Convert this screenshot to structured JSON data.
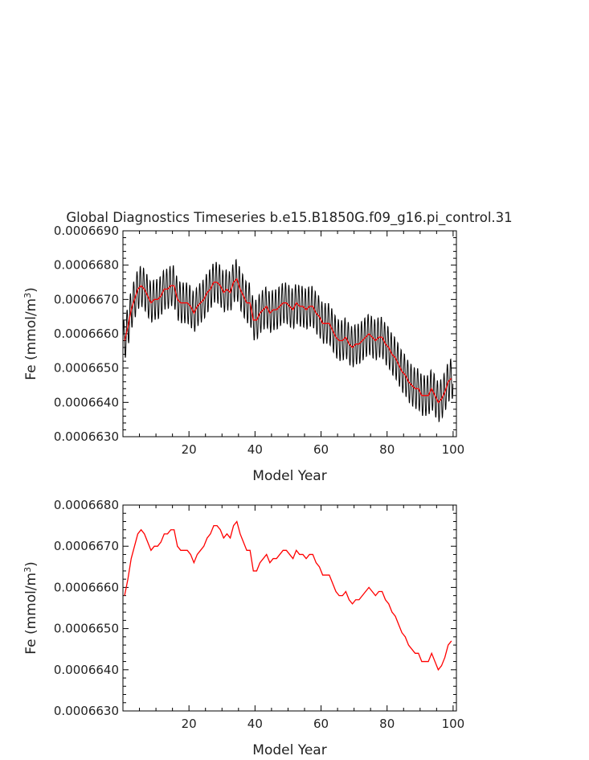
{
  "title": "Global Diagnostics Timeseries b.e15.B1850G.f09_g16.pi_control.31",
  "colors": {
    "monthly": "#000000",
    "annual": "#ff0000",
    "axes": "#000000"
  },
  "chart_data": [
    {
      "type": "line",
      "panel": "top",
      "xlabel": "Model Year",
      "ylabel": "Fe (mmol/m³)",
      "ylabel_base": "Fe (mmol/m",
      "ylabel_sup": "3",
      "ylabel_close": ")",
      "xlim": [
        0,
        101
      ],
      "ylim": [
        0.000663,
        0.000669
      ],
      "xticks": [
        20,
        40,
        60,
        80,
        100
      ],
      "xtick_labels": [
        "20",
        "40",
        "60",
        "80",
        "100"
      ],
      "yticks": [
        0.000663,
        0.000664,
        0.000665,
        0.000666,
        0.000667,
        0.000668,
        0.000669
      ],
      "ytick_labels": [
        "0.0006630",
        "0.0006640",
        "0.0006650",
        "0.0006660",
        "0.0006670",
        "0.0006680",
        "0.0006690"
      ],
      "series": [
        {
          "role": "monthly",
          "color": "#000000",
          "seasonal_amplitude": 6e-07
        },
        {
          "role": "annual",
          "color": "#ff0000"
        }
      ]
    },
    {
      "type": "line",
      "panel": "bottom",
      "xlabel": "Model Year",
      "ylabel": "Fe (mmol/m³)",
      "ylabel_base": "Fe (mmol/m",
      "ylabel_sup": "3",
      "ylabel_close": ")",
      "xlim": [
        0,
        101
      ],
      "ylim": [
        0.000663,
        0.000668
      ],
      "xticks": [
        20,
        40,
        60,
        80,
        100
      ],
      "xtick_labels": [
        "20",
        "40",
        "60",
        "80",
        "100"
      ],
      "yticks": [
        0.000663,
        0.000664,
        0.000665,
        0.000666,
        0.000667,
        0.000668
      ],
      "ytick_labels": [
        "0.0006630",
        "0.0006640",
        "0.0006650",
        "0.0006660",
        "0.0006670",
        "0.0006680"
      ],
      "series": [
        {
          "role": "annual",
          "color": "#ff0000"
        }
      ]
    }
  ],
  "annual_mean": {
    "x": [
      1,
      2,
      3,
      4,
      5,
      6,
      7,
      8,
      9,
      10,
      11,
      12,
      13,
      14,
      15,
      16,
      17,
      18,
      19,
      20,
      21,
      22,
      23,
      24,
      25,
      26,
      27,
      28,
      29,
      30,
      31,
      32,
      33,
      34,
      35,
      36,
      37,
      38,
      39,
      40,
      41,
      42,
      43,
      44,
      45,
      46,
      47,
      48,
      49,
      50,
      51,
      52,
      53,
      54,
      55,
      56,
      57,
      58,
      59,
      60,
      61,
      62,
      63,
      64,
      65,
      66,
      67,
      68,
      69,
      70,
      71,
      72,
      73,
      74,
      75,
      76,
      77,
      78,
      79,
      80,
      81,
      82,
      83,
      84,
      85,
      86,
      87,
      88,
      89,
      90,
      91,
      92,
      93,
      94,
      95,
      96,
      97,
      98,
      99,
      100
    ],
    "y": [
      0.0006658,
      0.0006662,
      0.0006667,
      0.000667,
      0.0006673,
      0.0006674,
      0.0006673,
      0.0006671,
      0.0006669,
      0.000667,
      0.000667,
      0.0006671,
      0.0006673,
      0.0006673,
      0.0006674,
      0.0006674,
      0.000667,
      0.0006669,
      0.0006669,
      0.0006669,
      0.0006668,
      0.0006666,
      0.0006668,
      0.0006669,
      0.000667,
      0.0006672,
      0.0006673,
      0.0006675,
      0.0006675,
      0.0006674,
      0.0006672,
      0.0006673,
      0.0006672,
      0.0006675,
      0.0006676,
      0.0006673,
      0.0006671,
      0.0006669,
      0.0006669,
      0.0006664,
      0.0006664,
      0.0006666,
      0.0006667,
      0.0006668,
      0.0006666,
      0.0006667,
      0.0006667,
      0.0006668,
      0.0006669,
      0.0006669,
      0.0006668,
      0.0006667,
      0.0006669,
      0.0006668,
      0.0006668,
      0.0006667,
      0.0006668,
      0.0006668,
      0.0006666,
      0.0006665,
      0.0006663,
      0.0006663,
      0.0006663,
      0.0006661,
      0.0006659,
      0.0006658,
      0.0006658,
      0.0006659,
      0.0006657,
      0.0006656,
      0.0006657,
      0.0006657,
      0.0006658,
      0.0006659,
      0.000666,
      0.0006659,
      0.0006658,
      0.0006659,
      0.0006659,
      0.0006657,
      0.0006656,
      0.0006654,
      0.0006653,
      0.0006651,
      0.0006649,
      0.0006648,
      0.0006646,
      0.0006645,
      0.0006644,
      0.0006644,
      0.0006642,
      0.0006642,
      0.0006642,
      0.0006644,
      0.0006642,
      0.000664,
      0.0006641,
      0.0006643,
      0.0006646,
      0.0006647
    ]
  }
}
